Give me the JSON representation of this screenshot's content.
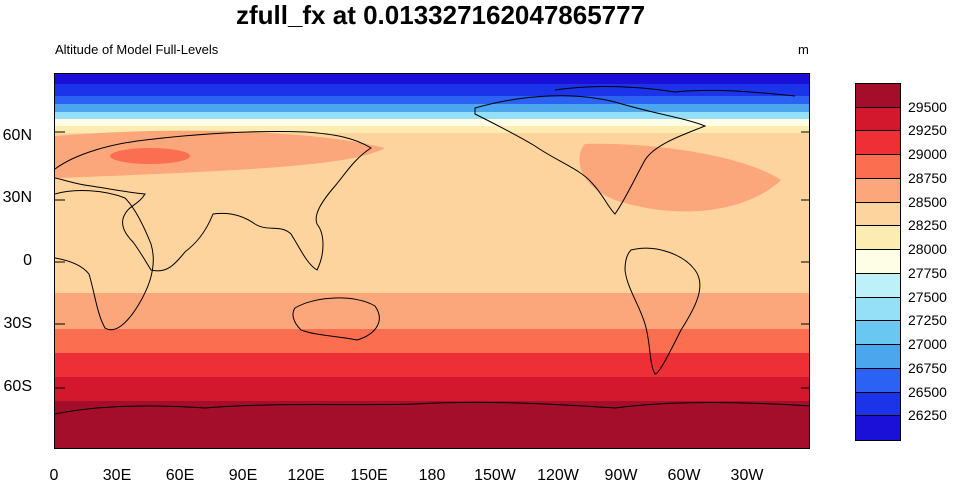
{
  "title": "zfull_fx at 0.013327162047865777",
  "subtitle_left": "Altitude of Model Full-Levels",
  "subtitle_right": "m",
  "y_axis_labels": [
    "60N",
    "30N",
    "0",
    "30S",
    "60S"
  ],
  "x_axis_labels": [
    "0",
    "30E",
    "60E",
    "90E",
    "120E",
    "150E",
    "180",
    "150W",
    "120W",
    "90W",
    "60W",
    "30W"
  ],
  "colorbar": {
    "labels": [
      "29500",
      "29250",
      "29000",
      "28750",
      "28500",
      "28250",
      "28000",
      "27750",
      "27500",
      "27250",
      "27000",
      "26750",
      "26500",
      "26250"
    ],
    "colors": [
      "#a50e2b",
      "#d3182e",
      "#ee2f36",
      "#fb6e50",
      "#fca67c",
      "#fdd49d",
      "#fdecb2",
      "#fefde6",
      "#bdf1f9",
      "#95e0f6",
      "#6ac7f1",
      "#4ba6ee",
      "#2b62f3",
      "#1b33e9",
      "#1a10d8"
    ]
  },
  "map_colors": {
    "land_outline": "#000000",
    "bands": [
      "#1a10d8",
      "#1b33e9",
      "#2b62f3",
      "#4ba6ee",
      "#95e0f6",
      "#fefde6",
      "#fdecb2",
      "#fdd49d",
      "#fca67c",
      "#fb6e50",
      "#ee2f36",
      "#d3182e",
      "#a50e2b"
    ]
  }
}
